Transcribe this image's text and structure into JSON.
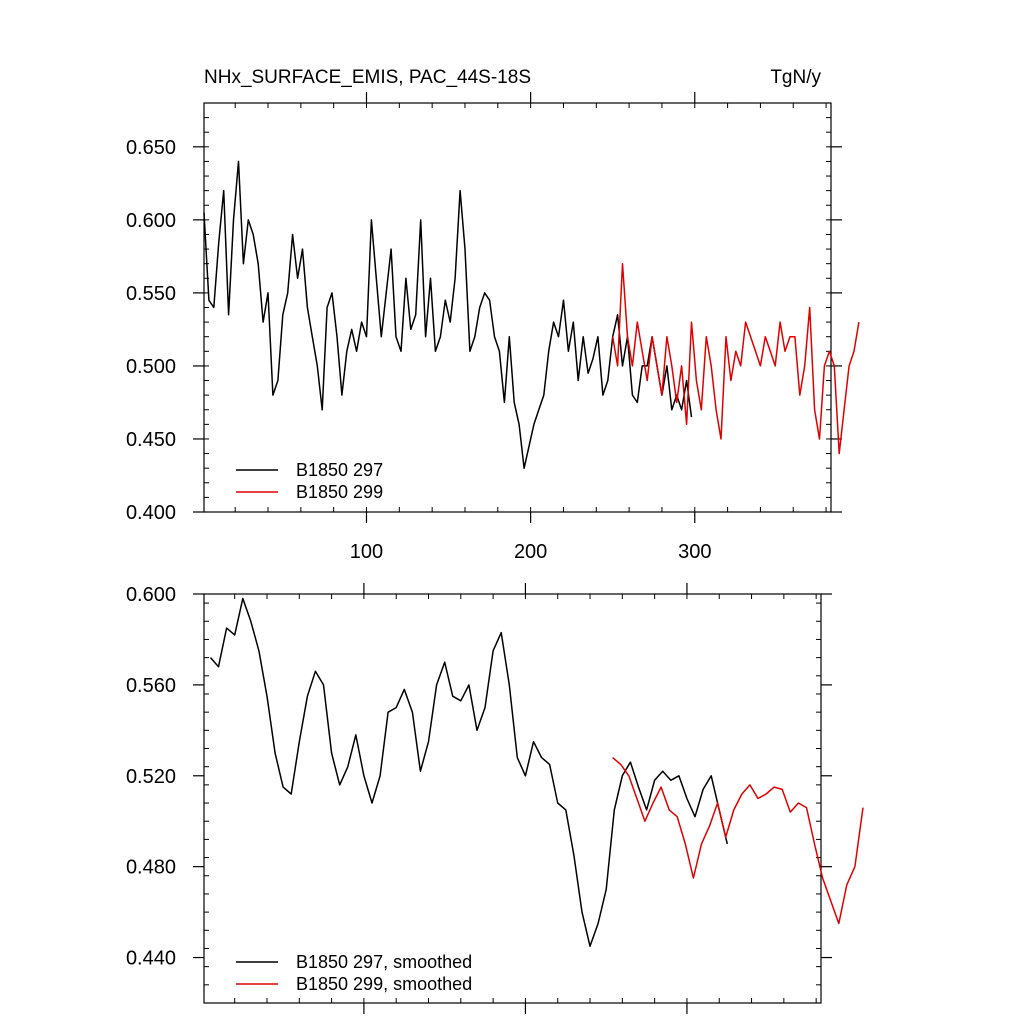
{
  "chart_data": [
    {
      "type": "line",
      "title": "NHx_SURFACE_EMIS, PAC_44S-18S",
      "units": "TgN/y",
      "xlim": [
        1,
        383
      ],
      "ylim": [
        0.4,
        0.68
      ],
      "x_ticks": [
        100,
        200,
        300
      ],
      "y_ticks": [
        0.4,
        0.45,
        0.5,
        0.55,
        0.6,
        0.65
      ],
      "y_tick_labels": [
        "0.400",
        "0.450",
        "0.500",
        "0.550",
        "0.600",
        "0.650"
      ],
      "legend_position": "bottom-left",
      "series": [
        {
          "name": "B1850 297",
          "color": "#000000",
          "x_start": 1,
          "x_step": 3,
          "values": [
            0.605,
            0.545,
            0.54,
            0.585,
            0.62,
            0.535,
            0.6,
            0.64,
            0.57,
            0.6,
            0.59,
            0.57,
            0.53,
            0.55,
            0.48,
            0.49,
            0.535,
            0.55,
            0.59,
            0.56,
            0.58,
            0.54,
            0.52,
            0.5,
            0.47,
            0.54,
            0.55,
            0.52,
            0.48,
            0.51,
            0.525,
            0.51,
            0.53,
            0.52,
            0.6,
            0.56,
            0.52,
            0.55,
            0.58,
            0.52,
            0.51,
            0.56,
            0.525,
            0.535,
            0.6,
            0.52,
            0.56,
            0.51,
            0.52,
            0.545,
            0.53,
            0.56,
            0.62,
            0.58,
            0.51,
            0.52,
            0.54,
            0.55,
            0.545,
            0.52,
            0.51,
            0.475,
            0.52,
            0.475,
            0.46,
            0.43,
            0.445,
            0.46,
            0.47,
            0.48,
            0.51,
            0.53,
            0.52,
            0.545,
            0.51,
            0.53,
            0.49,
            0.52,
            0.495,
            0.505,
            0.52,
            0.48,
            0.49,
            0.52,
            0.535,
            0.5,
            0.52,
            0.48,
            0.475,
            0.5,
            0.5,
            0.52,
            0.5,
            0.48,
            0.5,
            0.47,
            0.48,
            0.47,
            0.49,
            0.465
          ]
        },
        {
          "name": "B1850 299",
          "color": "#e00000",
          "x_start": 250,
          "x_step": 3,
          "values": [
            0.52,
            0.5,
            0.57,
            0.52,
            0.5,
            0.53,
            0.51,
            0.49,
            0.52,
            0.5,
            0.48,
            0.52,
            0.5,
            0.475,
            0.5,
            0.46,
            0.53,
            0.49,
            0.47,
            0.52,
            0.5,
            0.47,
            0.45,
            0.52,
            0.49,
            0.51,
            0.5,
            0.53,
            0.52,
            0.51,
            0.5,
            0.52,
            0.51,
            0.5,
            0.53,
            0.51,
            0.52,
            0.52,
            0.48,
            0.5,
            0.54,
            0.47,
            0.45,
            0.5,
            0.51,
            0.5,
            0.44,
            0.47,
            0.5,
            0.51,
            0.53
          ]
        }
      ]
    },
    {
      "type": "line",
      "xlim": [
        1,
        383
      ],
      "ylim": [
        0.42,
        0.6
      ],
      "x_ticks": [
        100,
        200,
        300
      ],
      "y_ticks": [
        0.44,
        0.48,
        0.52,
        0.56,
        0.6
      ],
      "y_tick_labels": [
        "0.440",
        "0.480",
        "0.520",
        "0.560",
        "0.600"
      ],
      "legend_position": "bottom-left",
      "series": [
        {
          "name": "B1850 297, smoothed",
          "color": "#000000",
          "x_start": 5,
          "x_step": 5,
          "values": [
            0.572,
            0.568,
            0.585,
            0.582,
            0.598,
            0.588,
            0.575,
            0.555,
            0.53,
            0.515,
            0.512,
            0.535,
            0.555,
            0.566,
            0.56,
            0.53,
            0.516,
            0.524,
            0.538,
            0.52,
            0.508,
            0.52,
            0.548,
            0.55,
            0.558,
            0.548,
            0.522,
            0.535,
            0.56,
            0.57,
            0.555,
            0.553,
            0.56,
            0.54,
            0.55,
            0.575,
            0.583,
            0.56,
            0.528,
            0.52,
            0.535,
            0.528,
            0.525,
            0.508,
            0.505,
            0.485,
            0.46,
            0.445,
            0.455,
            0.47,
            0.505,
            0.52,
            0.526,
            0.515,
            0.505,
            0.518,
            0.522,
            0.518,
            0.52,
            0.51,
            0.502,
            0.514,
            0.52,
            0.505,
            0.49
          ]
        },
        {
          "name": "B1850 299, smoothed",
          "color": "#e00000",
          "x_start": 254,
          "x_step": 5,
          "values": [
            0.528,
            0.525,
            0.52,
            0.51,
            0.5,
            0.508,
            0.515,
            0.505,
            0.502,
            0.49,
            0.475,
            0.49,
            0.498,
            0.508,
            0.493,
            0.505,
            0.512,
            0.516,
            0.51,
            0.512,
            0.515,
            0.514,
            0.504,
            0.508,
            0.506,
            0.49,
            0.475,
            0.465,
            0.455,
            0.472,
            0.48,
            0.506
          ]
        }
      ]
    }
  ]
}
